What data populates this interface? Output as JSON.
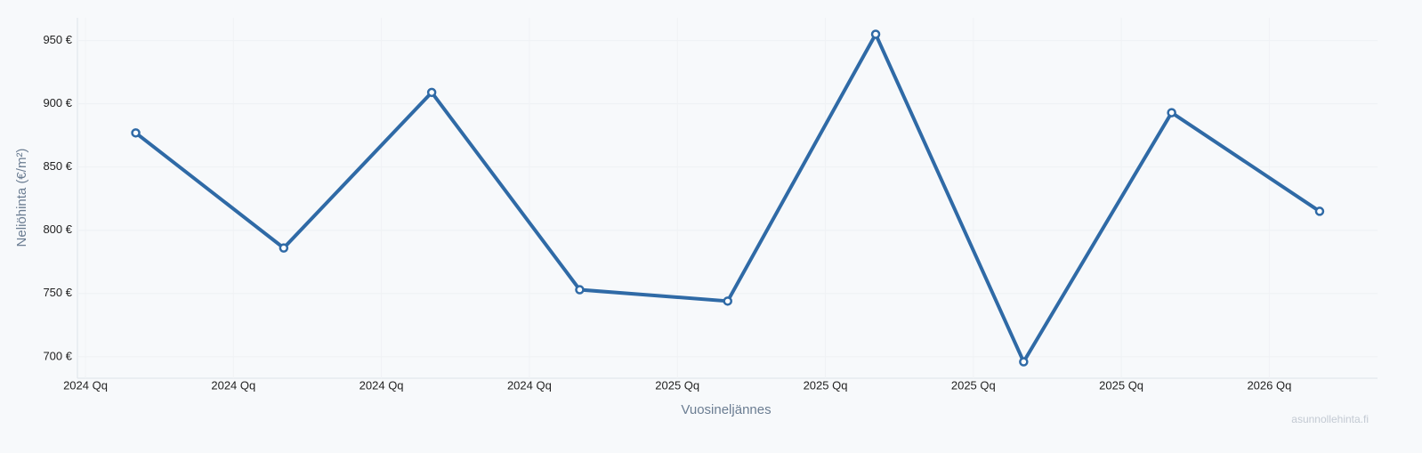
{
  "chart_data": {
    "type": "line",
    "y_label": "Neliöhinta (€/m²)",
    "x_label": "Vuosineljännes",
    "watermark": "asunnollehinta.fi",
    "categories": [
      "2024 Qq",
      "2024 Qq",
      "2024 Qq",
      "2024 Qq",
      "2025 Qq",
      "2025 Qq",
      "2025 Qq",
      "2025 Qq",
      "2026 Qq"
    ],
    "values": [
      877,
      786,
      909,
      753,
      744,
      955,
      696,
      893,
      815
    ],
    "color": "#2f6aa6",
    "ylim": [
      683,
      968
    ],
    "yticks": [
      {
        "value": 700,
        "label": "700 €"
      },
      {
        "value": 750,
        "label": "750 €"
      },
      {
        "value": 800,
        "label": "800 €"
      },
      {
        "value": 850,
        "label": "850 €"
      },
      {
        "value": 900,
        "label": "900 €"
      },
      {
        "value": 950,
        "label": "950 €"
      }
    ],
    "grid": true
  }
}
